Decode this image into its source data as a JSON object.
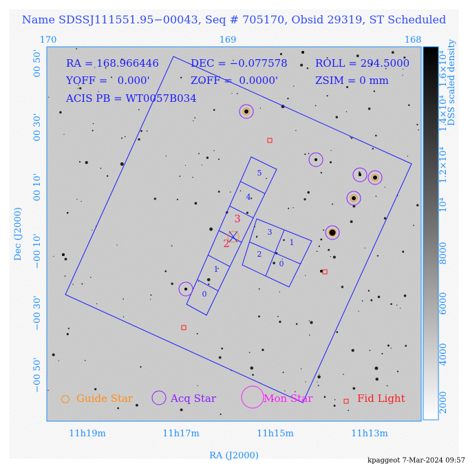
{
  "header": {
    "title": "Name SDSSJ111551.95−00043, Seq # 705170, Obsid 29319, ST Scheduled"
  },
  "axes": {
    "top_ticks": [
      "170",
      "169",
      "168"
    ],
    "left_ticks": [
      "00 50'",
      "00 30'",
      "00 10'",
      "−00 10'",
      "−00 30'",
      "−00 50'"
    ],
    "bottom_ticks": [
      "11h19m",
      "11h17m",
      "11h15m",
      "11h13m"
    ],
    "x_label": "RA (J2000)",
    "y_label": "Dec (J2000)"
  },
  "colorbar": {
    "label": "DSS scaled density",
    "ticks": [
      "2000",
      "4000",
      "6000",
      "8000",
      "10⁴",
      "1.2×10⁴",
      "1.4×10⁴",
      "1.6×10⁴"
    ]
  },
  "info": {
    "ra": "RA = 168.966446",
    "dec": "DEC = −0.077578",
    "roll": "ROLL = 294.5000",
    "yoff": "YOFF =   0.000'",
    "zoff": "ZOFF =  0.0000'",
    "zsim": "ZSIM = 0 mm",
    "acis": "ACIS PB = WT0057B034"
  },
  "chips": {
    "s": [
      "0",
      "1",
      "2",
      "3",
      "4",
      "5"
    ],
    "i": [
      "0",
      "1",
      "2",
      "3"
    ]
  },
  "legend": [
    "Guide Star",
    "Acq Star",
    "Mon Star",
    "Fid Light"
  ],
  "footer": "kpaggeot  7-Mar-2024 09:57"
}
